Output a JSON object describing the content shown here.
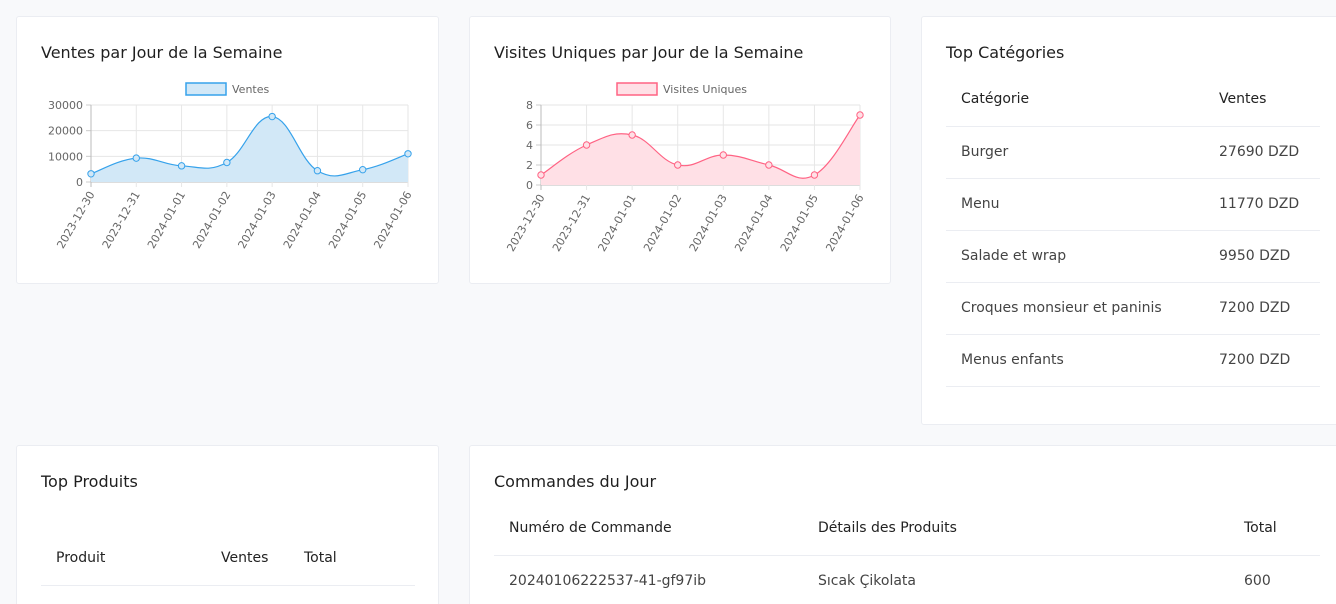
{
  "sales_card": {
    "title": "Ventes par Jour de la Semaine",
    "chart_data": {
      "type": "area",
      "x": [
        "2023-12-30",
        "2023-12-31",
        "2024-01-01",
        "2024-01-02",
        "2024-01-03",
        "2024-01-04",
        "2024-01-05",
        "2024-01-06"
      ],
      "series": [
        {
          "name": "Ventes",
          "values": [
            3200,
            9300,
            6300,
            7600,
            25500,
            4400,
            4800,
            11000
          ]
        }
      ],
      "ylim": [
        0,
        30000
      ],
      "yticks": [
        0,
        10000,
        20000,
        30000
      ],
      "grid": true,
      "legend": "top-center",
      "colors": {
        "line": "#36a2eb",
        "fill": "#d2e8f7"
      }
    }
  },
  "visits_card": {
    "title": "Visites Uniques par Jour de la Semaine",
    "chart_data": {
      "type": "area",
      "x": [
        "2023-12-30",
        "2023-12-31",
        "2024-01-01",
        "2024-01-02",
        "2024-01-03",
        "2024-01-04",
        "2024-01-05",
        "2024-01-06"
      ],
      "series": [
        {
          "name": "Visites Uniques",
          "values": [
            1,
            4,
            5,
            2,
            3,
            2,
            1,
            7
          ]
        }
      ],
      "ylim": [
        0,
        8
      ],
      "yticks": [
        0,
        2,
        4,
        6,
        8
      ],
      "grid": true,
      "legend": "top-center",
      "colors": {
        "line": "#ff6384",
        "fill": "#ffe0e6"
      }
    }
  },
  "categories_card": {
    "title": "Top Catégories",
    "headers": [
      "Catégorie",
      "Ventes"
    ],
    "rows": [
      [
        "Burger",
        "27690 DZD"
      ],
      [
        "Menu",
        "11770 DZD"
      ],
      [
        "Salade et wrap",
        "9950 DZD"
      ],
      [
        "Croques monsieur et paninis",
        "7200 DZD"
      ],
      [
        "Menus enfants",
        "7200 DZD"
      ]
    ]
  },
  "products_card": {
    "title": "Top Produits",
    "headers": [
      "Produit",
      "Ventes",
      "Total"
    ]
  },
  "orders_card": {
    "title": "Commandes du Jour",
    "headers": [
      "Numéro de Commande",
      "Détails des Produits",
      "Total"
    ],
    "rows": [
      [
        "20240106222537-41-gf97ib",
        "Sıcak Çikolata",
        "600"
      ]
    ]
  }
}
